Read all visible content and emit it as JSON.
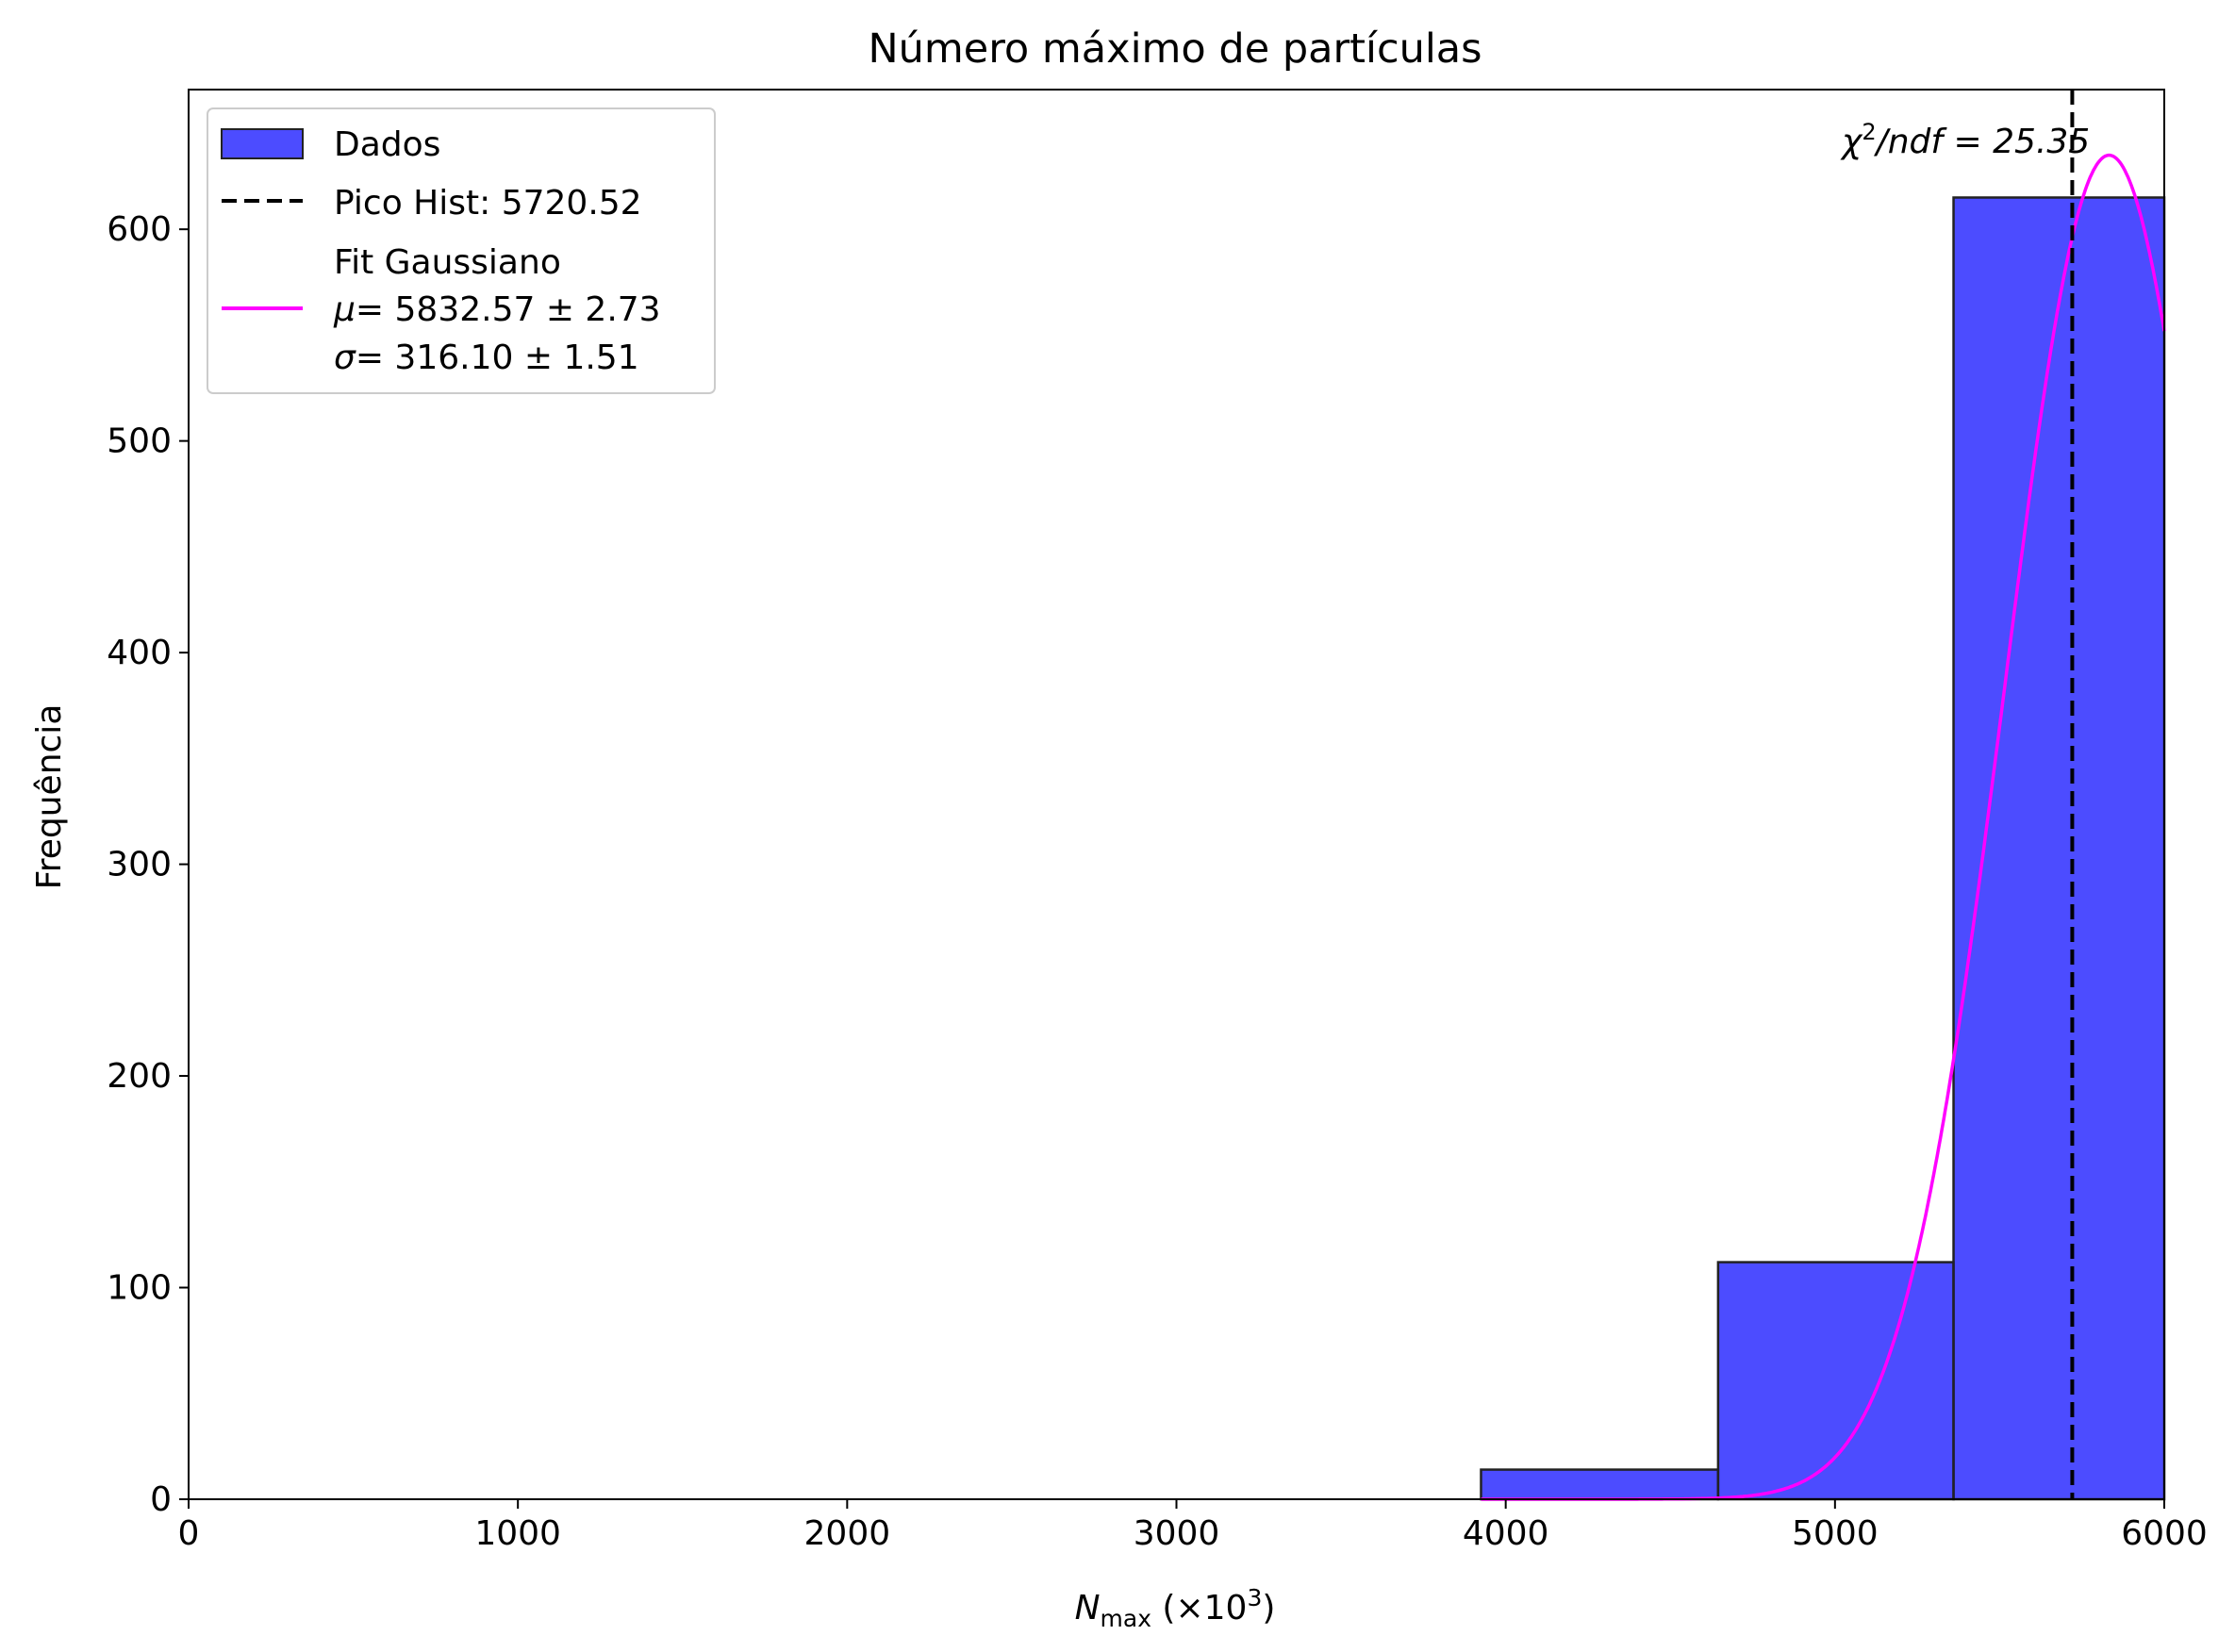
{
  "chart_data": {
    "type": "bar",
    "title": "Número máximo de partículas",
    "xlabel": {
      "var": "N",
      "sub": "max",
      "unit_pre": " (×10",
      "unit_sup": "3",
      "unit_post": ")"
    },
    "ylabel": "Frequência",
    "xlim": [
      0,
      6000
    ],
    "ylim": [
      0,
      666
    ],
    "xticks": [
      0,
      1000,
      2000,
      3000,
      4000,
      5000,
      6000
    ],
    "yticks": [
      0,
      100,
      200,
      300,
      400,
      500,
      600
    ],
    "grid": false,
    "legend_position": "top-left",
    "histogram": {
      "name": "Dados",
      "color": "#0000ff",
      "edge_color": "#222222",
      "bins": [
        {
          "x0": 3925,
          "x1": 4645,
          "count": 14
        },
        {
          "x0": 4645,
          "x1": 5360,
          "count": 112
        },
        {
          "x0": 5360,
          "x1": 6000,
          "count": 615
        }
      ]
    },
    "peak_line": {
      "name": "Pico Hist: 5720.52",
      "x": 5720.52,
      "color": "#000000"
    },
    "fit": {
      "name": "Fit Gaussiano",
      "color": "#ff00ff",
      "mu_label": "= 5832.57 ± 2.73",
      "sigma_label": "= 316.10 ± 1.51",
      "mu": 5832.57,
      "sigma": 316.1,
      "amplitude": 635
    },
    "annotation": {
      "label": "/ndf = 25.35",
      "symbol": "χ",
      "sup": "2"
    }
  }
}
